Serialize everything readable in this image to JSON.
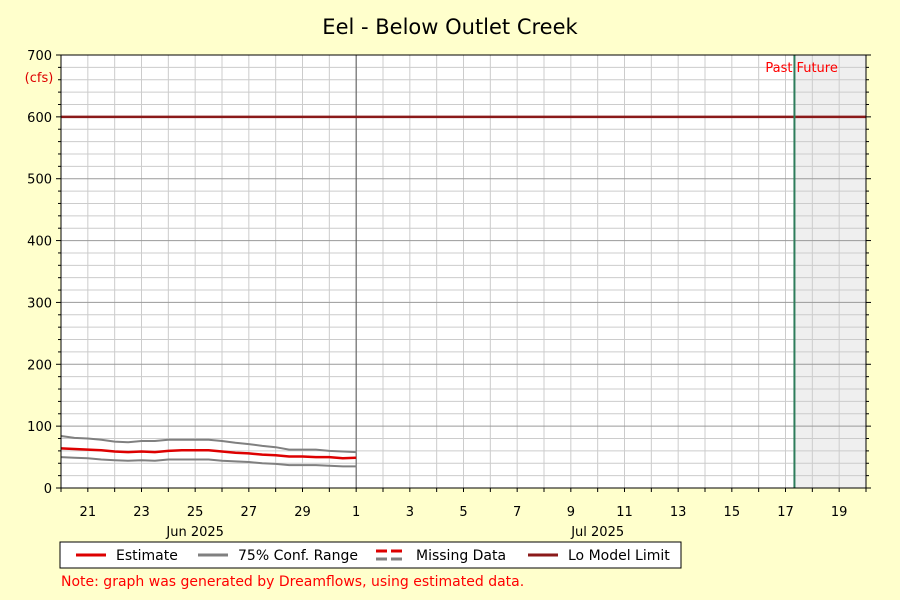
{
  "chart_data": {
    "type": "line",
    "title": "Eel - Below Outlet Creek",
    "y_unit": "(cfs)",
    "ylim": [
      0,
      700
    ],
    "y_ticks": [
      0,
      100,
      200,
      300,
      400,
      500,
      600,
      700
    ],
    "x_range": [
      "2025-06-20",
      "2025-07-20"
    ],
    "x_ticks": [
      {
        "date": "2025-06-21",
        "label": "21"
      },
      {
        "date": "2025-06-23",
        "label": "23"
      },
      {
        "date": "2025-06-25",
        "label": "25"
      },
      {
        "date": "2025-06-27",
        "label": "27"
      },
      {
        "date": "2025-06-29",
        "label": "29"
      },
      {
        "date": "2025-07-01",
        "label": "1"
      },
      {
        "date": "2025-07-03",
        "label": "3"
      },
      {
        "date": "2025-07-05",
        "label": "5"
      },
      {
        "date": "2025-07-07",
        "label": "7"
      },
      {
        "date": "2025-07-09",
        "label": "9"
      },
      {
        "date": "2025-07-11",
        "label": "11"
      },
      {
        "date": "2025-07-13",
        "label": "13"
      },
      {
        "date": "2025-07-15",
        "label": "15"
      },
      {
        "date": "2025-07-17",
        "label": "17"
      },
      {
        "date": "2025-07-19",
        "label": "19"
      }
    ],
    "month_labels": [
      {
        "date": "2025-06-25",
        "label": "Jun 2025"
      },
      {
        "date": "2025-07-10",
        "label": "Jul 2025"
      }
    ],
    "month_boundary": "2025-07-01",
    "now_marker": {
      "date": "2025-07-17T08:00",
      "past_label": "Past",
      "future_label": "Future",
      "color": "#2e7d5b"
    },
    "lo_model_limit": {
      "value": 600,
      "color": "#8b1a1a"
    },
    "series": [
      {
        "name": "Estimate",
        "color": "#dd0000",
        "x": [
          "2025-06-20T00:00",
          "2025-06-20T12:00",
          "2025-06-21T00:00",
          "2025-06-21T12:00",
          "2025-06-22T00:00",
          "2025-06-22T12:00",
          "2025-06-23T00:00",
          "2025-06-23T12:00",
          "2025-06-24T00:00",
          "2025-06-24T12:00",
          "2025-06-25T00:00",
          "2025-06-25T12:00",
          "2025-06-26T00:00",
          "2025-06-26T12:00",
          "2025-06-27T00:00",
          "2025-06-27T12:00",
          "2025-06-28T00:00",
          "2025-06-28T12:00",
          "2025-06-29T00:00",
          "2025-06-29T12:00",
          "2025-06-30T00:00",
          "2025-06-30T12:00",
          "2025-07-01T00:00"
        ],
        "y": [
          64,
          63,
          62,
          61,
          59,
          58,
          59,
          58,
          60,
          61,
          61,
          61,
          59,
          57,
          56,
          54,
          53,
          51,
          51,
          50,
          50,
          48,
          49
        ]
      },
      {
        "name": "75% Conf. Range",
        "color": "#808080",
        "x": [
          "2025-06-20T00:00",
          "2025-06-20T12:00",
          "2025-06-21T00:00",
          "2025-06-21T12:00",
          "2025-06-22T00:00",
          "2025-06-22T12:00",
          "2025-06-23T00:00",
          "2025-06-23T12:00",
          "2025-06-24T00:00",
          "2025-06-24T12:00",
          "2025-06-25T00:00",
          "2025-06-25T12:00",
          "2025-06-26T00:00",
          "2025-06-26T12:00",
          "2025-06-27T00:00",
          "2025-06-27T12:00",
          "2025-06-28T00:00",
          "2025-06-28T12:00",
          "2025-06-29T00:00",
          "2025-06-29T12:00",
          "2025-06-30T00:00",
          "2025-06-30T12:00",
          "2025-07-01T00:00"
        ],
        "upper": [
          84,
          81,
          80,
          78,
          75,
          74,
          76,
          76,
          78,
          78,
          78,
          78,
          76,
          73,
          71,
          68,
          66,
          62,
          62,
          62,
          60,
          59,
          58
        ],
        "lower": [
          50,
          49,
          48,
          46,
          45,
          44,
          45,
          44,
          46,
          46,
          46,
          46,
          44,
          43,
          42,
          40,
          39,
          37,
          37,
          37,
          36,
          35,
          35
        ]
      }
    ],
    "grid": true,
    "legend": {
      "placement": "bottom",
      "items": [
        {
          "label": "Estimate",
          "color": "#dd0000",
          "style": "solid"
        },
        {
          "label": "75% Conf. Range",
          "color": "#808080",
          "style": "solid"
        },
        {
          "label": "Missing Data",
          "color": "#dd0000",
          "color2": "#808080",
          "style": "dashed"
        },
        {
          "label": "Lo Model Limit",
          "color": "#8b1a1a",
          "style": "solid"
        }
      ]
    },
    "note": "Note: graph was generated by Dreamflows, using estimated data."
  }
}
